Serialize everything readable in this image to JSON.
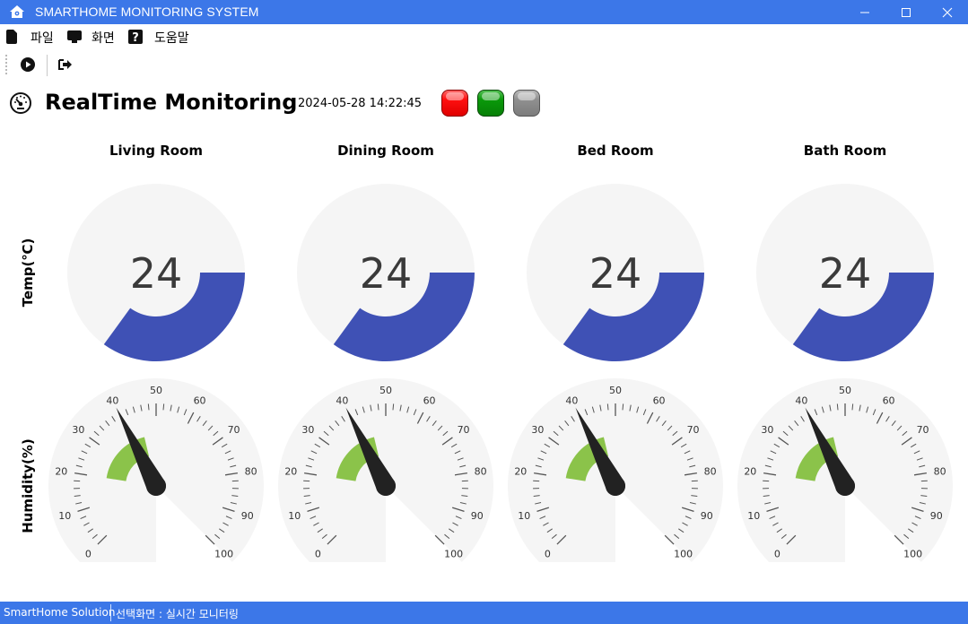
{
  "window": {
    "title": "SMARTHOME MONITORING SYSTEM"
  },
  "menu": {
    "items": [
      {
        "label": "파일",
        "icon": "file-icon"
      },
      {
        "label": "화면",
        "icon": "monitor-icon"
      },
      {
        "label": "도움말",
        "icon": "help-icon"
      }
    ]
  },
  "toolbar": {
    "buttons": [
      {
        "icon": "play-icon"
      },
      {
        "icon": "exit-icon"
      }
    ]
  },
  "header": {
    "title": "RealTime Monitoring",
    "timestamp": "2024-05-28 14:22:45",
    "indicators": [
      {
        "name": "red",
        "color": "#ff1010"
      },
      {
        "name": "green",
        "color": "#0a9a0a"
      },
      {
        "name": "gray",
        "color": "#909090"
      }
    ]
  },
  "row_labels": {
    "temp": "Temp(℃)",
    "humidity": "Humidity(%)"
  },
  "rooms": [
    {
      "name": "Living Room",
      "temperature": "24",
      "humidity": 40
    },
    {
      "name": "Dining Room",
      "temperature": "24",
      "humidity": 40
    },
    {
      "name": "Bed Room",
      "temperature": "24",
      "humidity": 40
    },
    {
      "name": "Bath Room",
      "temperature": "24",
      "humidity": 40
    }
  ],
  "gauge_scale": {
    "temperature": {
      "min": 0,
      "max": 40
    },
    "humidity": {
      "min": 0,
      "max": 100,
      "ticks": [
        "0",
        "10",
        "20",
        "30",
        "40",
        "50",
        "60",
        "70",
        "80",
        "90",
        "100"
      ],
      "band": [
        20,
        45
      ]
    }
  },
  "colors": {
    "accent": "#3c77e8",
    "temp_fill": "#3f51b5",
    "humidity_band": "#8bc34a",
    "gauge_background": "#f5f5f5",
    "needle": "#222222"
  },
  "statusbar": {
    "left": "SmartHome Solution",
    "right": "선택화면 : 실시간 모니터링"
  }
}
